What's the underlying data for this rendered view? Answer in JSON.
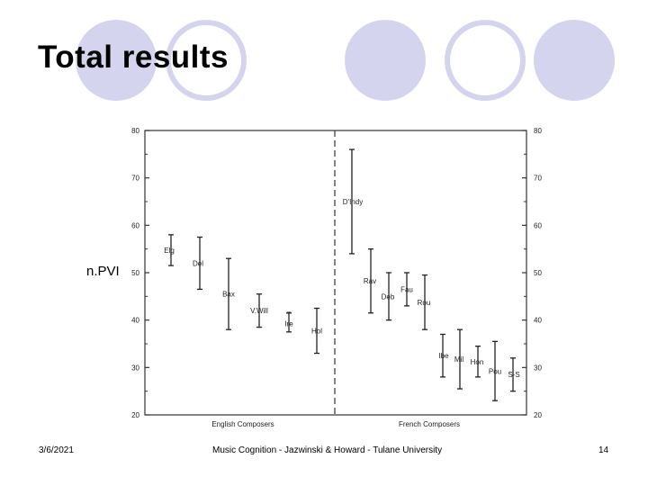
{
  "slide": {
    "title": "Total results",
    "footer_left": "3/6/2021",
    "footer_center": "Music Cognition - Jazwinski & Howard - Tulane University",
    "footer_right": "14",
    "accent_fill": "#d4d4ee",
    "accent_ring": "#d4d4ee"
  },
  "chart_data": {
    "type": "scatter",
    "title": "",
    "ylabel": "n.PVI",
    "ylim": [
      20,
      80
    ],
    "yticks": [
      20,
      30,
      40,
      50,
      60,
      70,
      80
    ],
    "grid": false,
    "groups": [
      {
        "label": "English Composers",
        "points": [
          {
            "label": "Elg",
            "low": 51.5,
            "high": 58
          },
          {
            "label": "Del",
            "low": 46.5,
            "high": 57.5
          },
          {
            "label": "Bax",
            "low": 38,
            "high": 53
          },
          {
            "label": "V.Will",
            "low": 38.5,
            "high": 45.5
          },
          {
            "label": "T Ire",
            "low": 37.5,
            "high": 41.5
          },
          {
            "label": "Hol",
            "low": 33,
            "high": 42.5
          }
        ]
      },
      {
        "label": "French Composers",
        "points": [
          {
            "label": "D'Indy",
            "low": 54,
            "high": 76
          },
          {
            "label": "Rav",
            "low": 41.5,
            "high": 55
          },
          {
            "label": "Deb",
            "low": 40,
            "high": 50
          },
          {
            "label": "Fau",
            "low": 43,
            "high": 50
          },
          {
            "label": "Rou",
            "low": 38,
            "high": 49.5
          },
          {
            "label": "Ibe",
            "low": 28,
            "high": 37
          },
          {
            "label": "Mil",
            "low": 25.5,
            "high": 38
          },
          {
            "label": "Hon",
            "low": 28,
            "high": 34.5
          },
          {
            "label": "Pou",
            "low": 23,
            "high": 35.5
          },
          {
            "label": "S-S",
            "low": 25,
            "high": 32
          }
        ]
      }
    ]
  }
}
